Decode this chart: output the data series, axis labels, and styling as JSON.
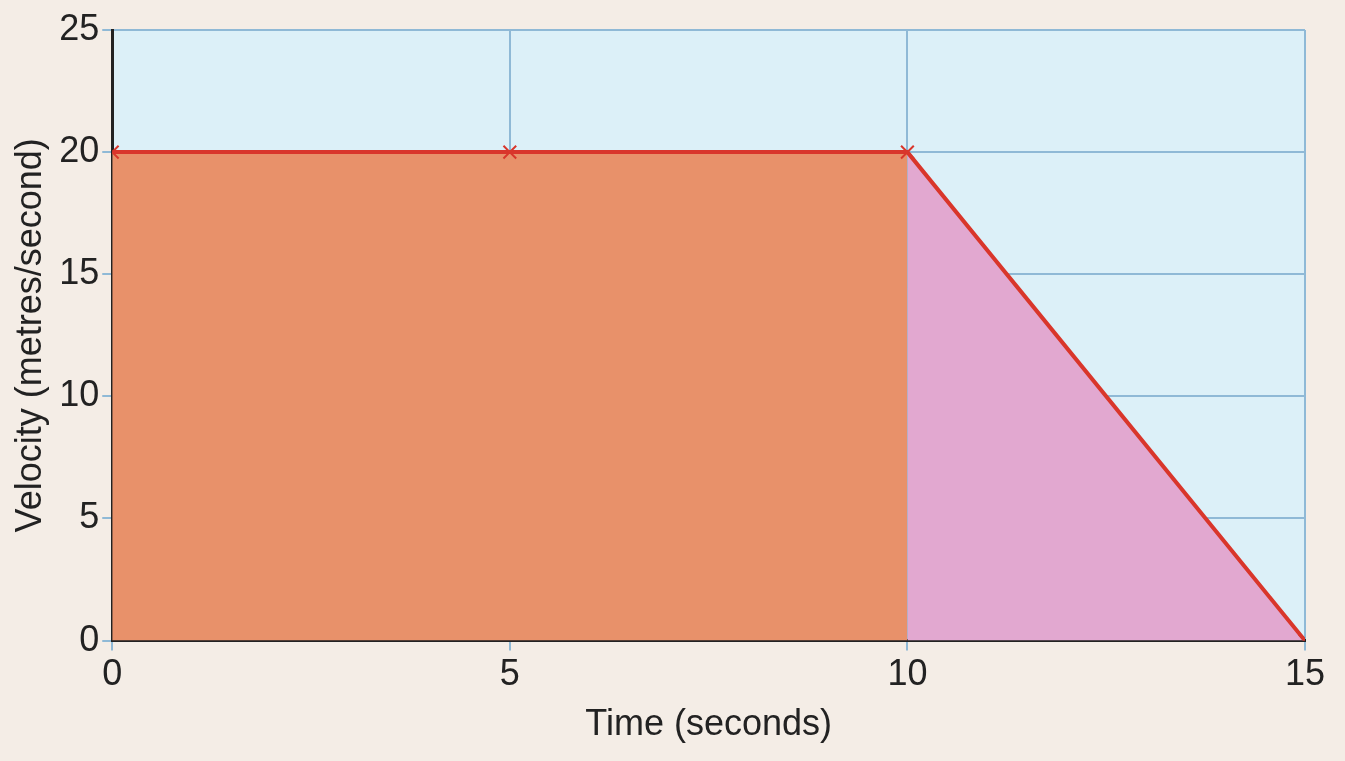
{
  "chart_data": {
    "type": "area",
    "xlabel": "Time (seconds)",
    "ylabel": "Velocity (metres/second)",
    "xlim": [
      0,
      15
    ],
    "xticks": [
      0,
      5,
      10,
      15
    ],
    "ylim": [
      0,
      25
    ],
    "yticks": [
      0,
      5,
      10,
      15,
      20,
      25
    ],
    "grid": true,
    "series": [
      {
        "color": "#e8916a",
        "x": [
          0,
          5,
          10
        ],
        "values": [
          20,
          20,
          20
        ]
      },
      {
        "color": "#e2a8d0",
        "x": [
          10,
          15
        ],
        "values": [
          20,
          0
        ]
      },
      {
        "type": "line",
        "color": "#d9362b",
        "x": [
          0,
          5,
          10,
          15
        ],
        "values": [
          20,
          20,
          20,
          0
        ],
        "marker": "cross"
      }
    ]
  }
}
